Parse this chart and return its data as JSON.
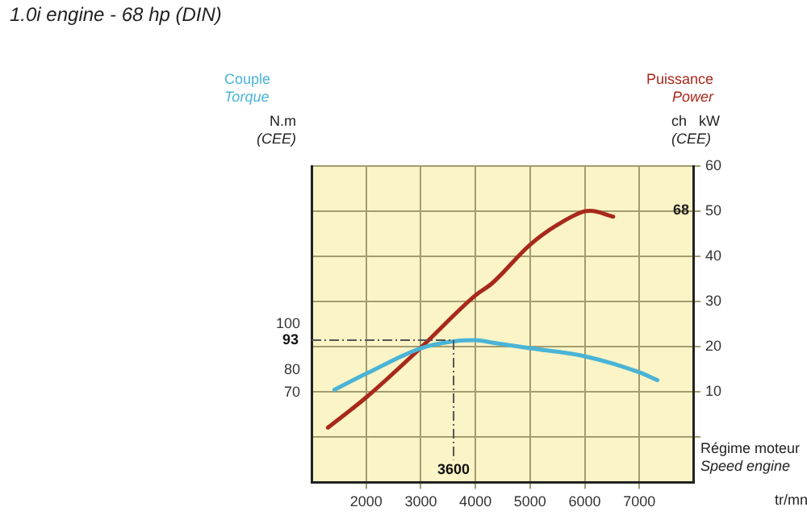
{
  "chart_data": {
    "type": "line",
    "title": "1.0i engine - 68 hp (DIN)",
    "xlabel": "Régime moteur\nSpeed engine",
    "ylabel": "ch   kW\n(CEE)",
    "y2label": "N.m\n(CEE)",
    "xlim": [
      1000,
      8000
    ],
    "xticks": [
      2000,
      3000,
      4000,
      5000,
      6000,
      7000
    ],
    "ylim": [
      -10,
      60
    ],
    "yticks": [
      {
        "value": 0,
        "label": null
      },
      10,
      20,
      30,
      40,
      50,
      60
    ],
    "y2lim": [
      31,
      169
    ],
    "y2ticks": [
      70,
      80,
      93,
      100
    ],
    "series": [
      {
        "name": "Couple\nTorque",
        "color": "#4ab4d6",
        "axis": "y2",
        "x": [
          1420,
          2000,
          3000,
          3600,
          4000,
          4300,
          5000,
          6000,
          7000,
          7330
        ],
        "values": [
          71.4,
          78.4,
          89.5,
          92.5,
          93,
          92,
          89.5,
          86,
          79,
          75.6
        ]
      },
      {
        "name": "Puissance\nPower",
        "color": "#a8281c",
        "x": [
          1300,
          2000,
          3000,
          4000,
          4300,
          5000,
          5500,
          6000,
          6100,
          6520
        ],
        "values": [
          2.1,
          8.8,
          19.8,
          31.4,
          34,
          42.6,
          47,
          50,
          50.1,
          48.8
        ]
      }
    ],
    "ref_lines": [
      {
        "axis": "y2",
        "value": 93,
        "label": "93"
      },
      {
        "axis": "x",
        "value": 3600,
        "label": "3600"
      }
    ],
    "annotations": [
      "68",
      "tr/mn"
    ],
    "grid": true,
    "legend": false,
    "marker": "none",
    "line_style": "solid"
  }
}
